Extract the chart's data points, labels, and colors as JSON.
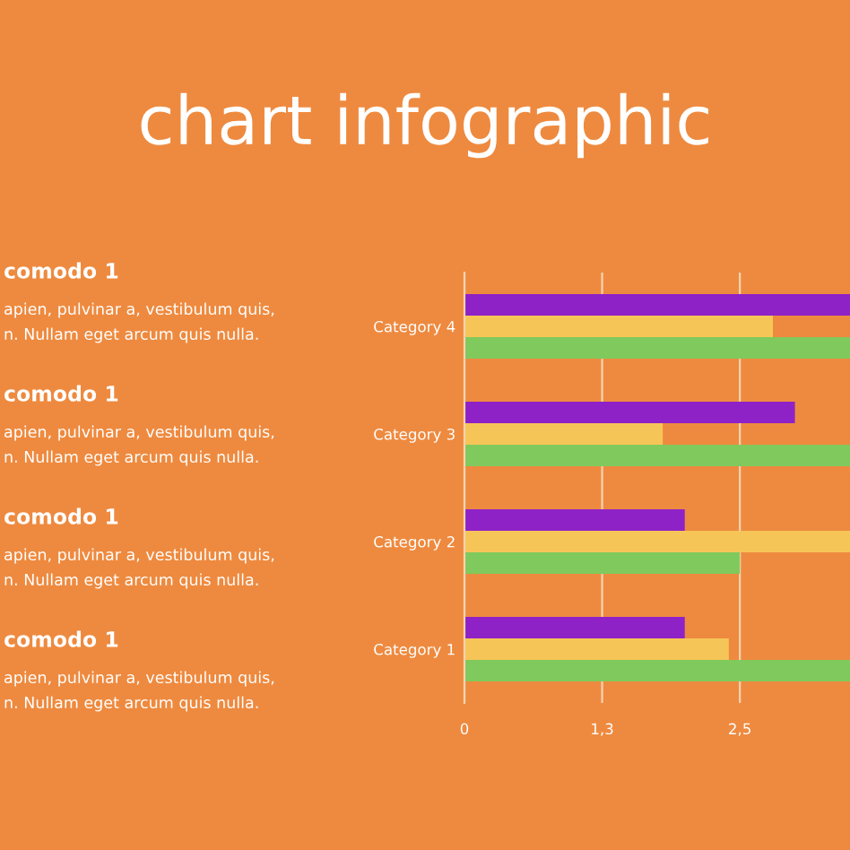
{
  "chart_data": {
    "type": "bar",
    "orientation": "horizontal",
    "title": "chart infographic",
    "categories": [
      "Category 4",
      "Category 3",
      "Category 2",
      "Category 1"
    ],
    "series": [
      {
        "color": "#8e22c6",
        "values": [
          3.5,
          3.0,
          2.0,
          2.0
        ]
      },
      {
        "color": "#f6c557",
        "values": [
          2.8,
          1.8,
          3.5,
          2.4
        ]
      },
      {
        "color": "#80c95c",
        "values": [
          3.5,
          3.5,
          2.5,
          3.5
        ]
      }
    ],
    "xlim": [
      0,
      3.5
    ],
    "xticks": [
      0,
      {
        "value": 1.25,
        "label": "1,3"
      },
      {
        "value": 2.5,
        "label": "2,5"
      }
    ],
    "grid": "x",
    "annotations": [
      "comodo 1",
      "apien, pulvinar a, vestibulum quis,",
      "n. Nullam eget arcum quis nulla.",
      "comodo 1",
      "apien, pulvinar a, vestibulum quis,",
      "n. Nullam eget arcum quis nulla.",
      "comodo 1",
      "apien, pulvinar a, vestibulum quis,",
      "n. Nullam eget arcum quis nulla.",
      "comodo 1",
      "apien, pulvinar a, vestibulum quis,",
      "n. Nullam eget arcum quis nulla."
    ]
  }
}
